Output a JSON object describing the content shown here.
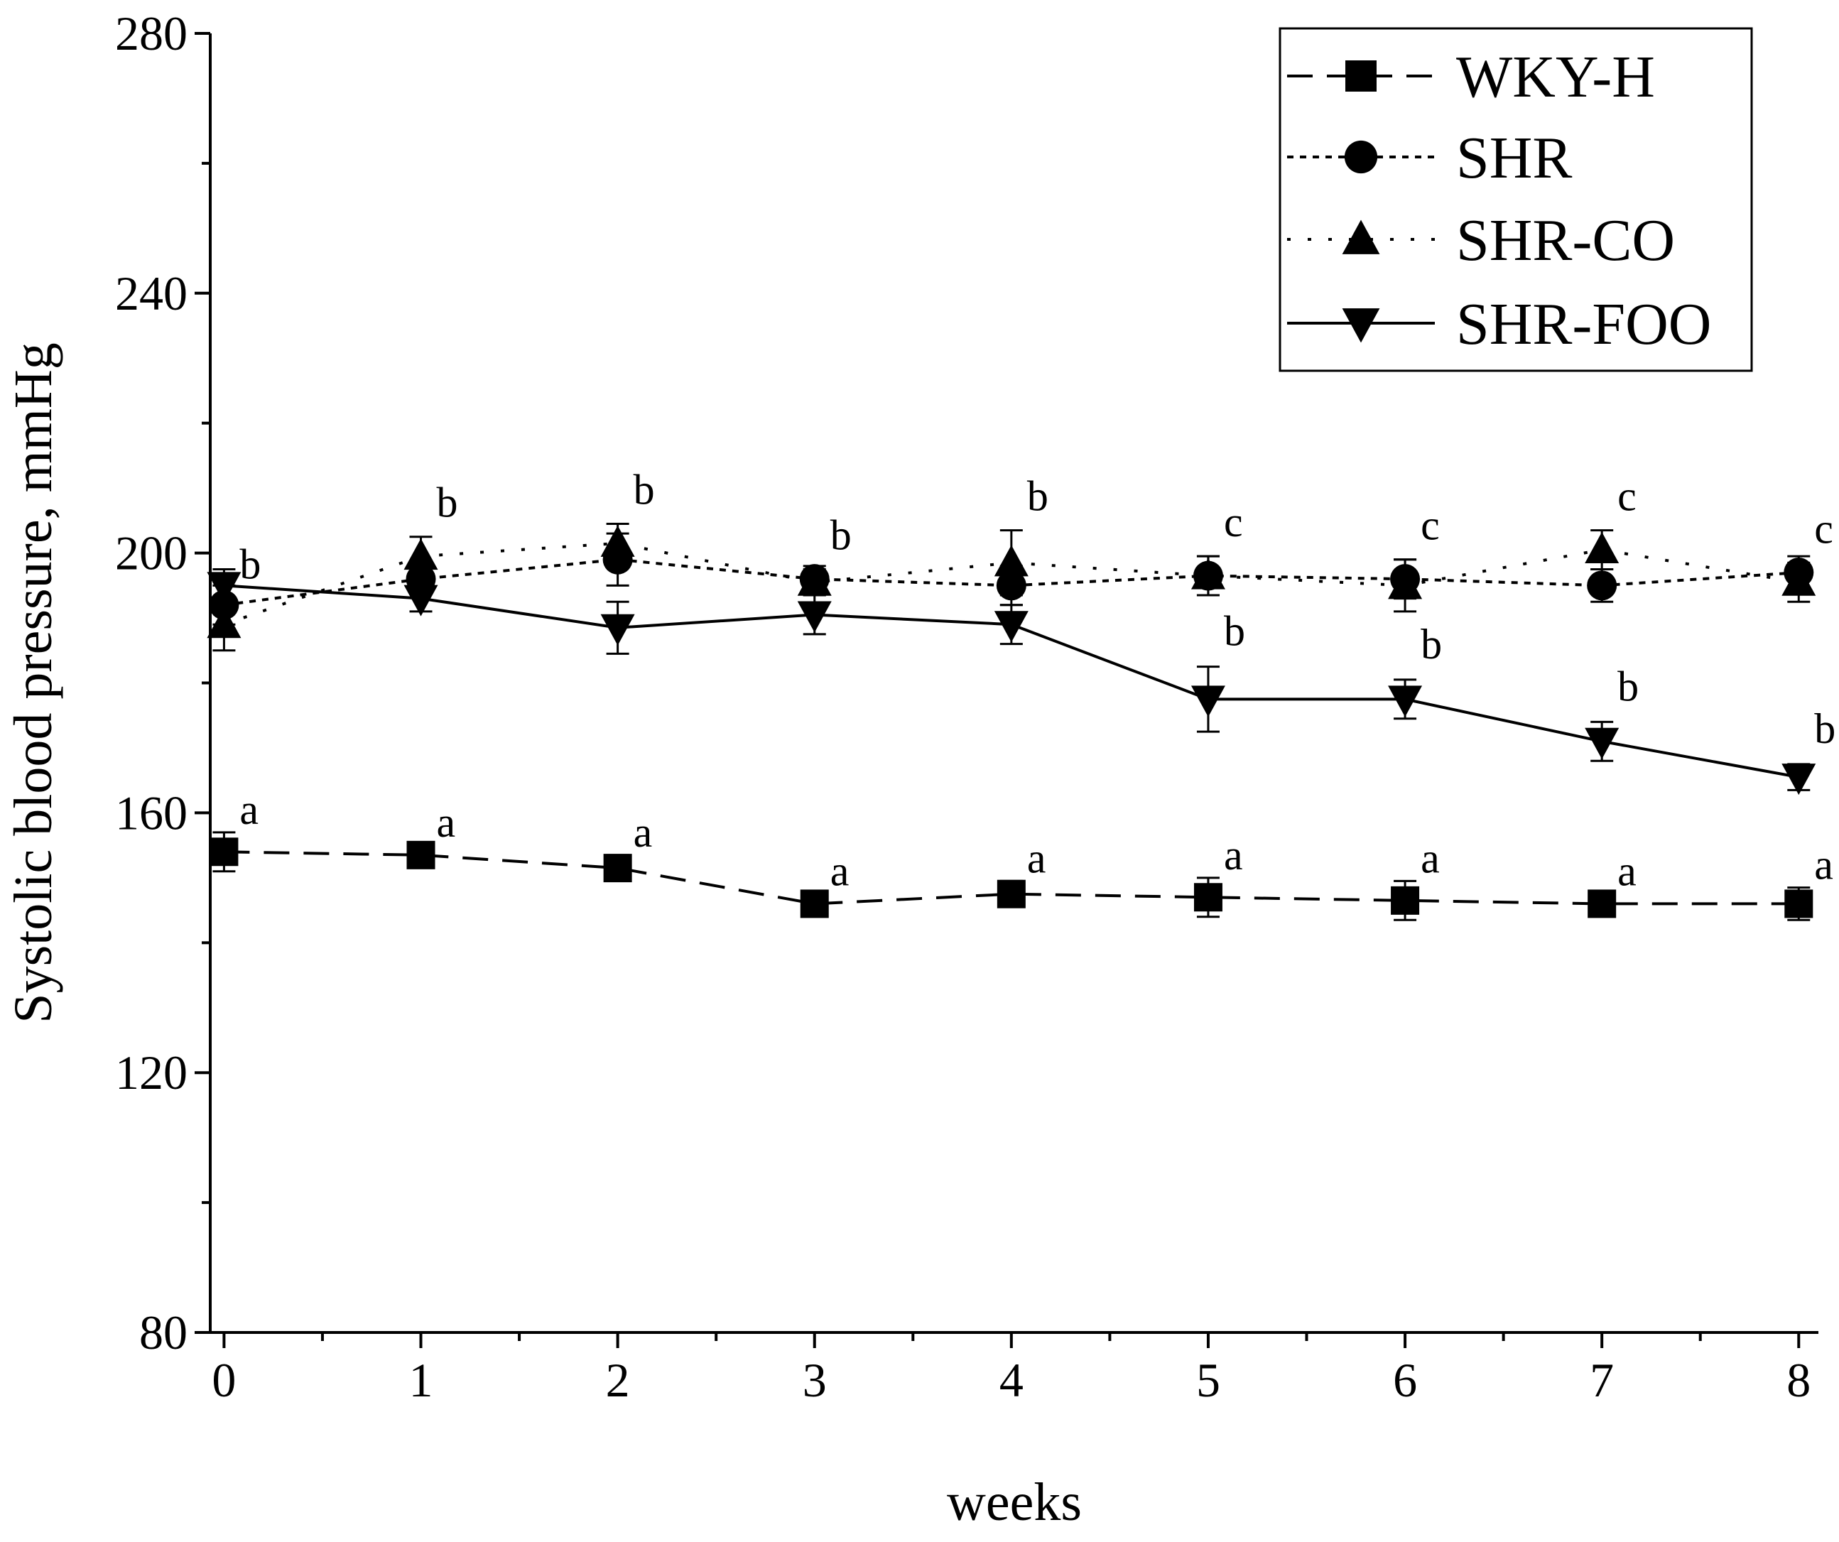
{
  "chart_data": {
    "type": "line",
    "title": "",
    "xlabel": "weeks",
    "ylabel": "Systolic blood pressure, mmHg",
    "xlim": [
      -0.07,
      8.1
    ],
    "ylim": [
      80,
      280
    ],
    "x": [
      0,
      1,
      2,
      3,
      4,
      5,
      6,
      7,
      8
    ],
    "x_tick_labels": [
      "0",
      "1",
      "2",
      "3",
      "4",
      "5",
      "6",
      "7",
      "8"
    ],
    "y_ticks": [
      80,
      120,
      160,
      200,
      240,
      280
    ],
    "y_tick_labels": [
      "80",
      "120",
      "160",
      "200",
      "240",
      "280"
    ],
    "grid": false,
    "legend_position": "top-right",
    "series": [
      {
        "name": "WKY-H",
        "line_style": "dashed",
        "marker": "square",
        "values": [
          154,
          153.5,
          151.5,
          146,
          147.5,
          147,
          146.5,
          146,
          146
        ],
        "errors": [
          3,
          1.5,
          2,
          1.5,
          2,
          3,
          3,
          1.5,
          2.5
        ],
        "labels": [
          "a",
          "a",
          "a",
          "a",
          "a",
          "a",
          "a",
          "a",
          "a"
        ]
      },
      {
        "name": "SHR",
        "line_style": "dotted",
        "marker": "circle",
        "values": [
          192,
          196,
          199,
          196,
          195,
          196.5,
          196,
          195,
          197
        ],
        "errors": [
          3,
          2,
          4,
          2,
          3,
          3,
          3,
          2.5,
          2.5
        ],
        "labels": []
      },
      {
        "name": "SHR-CO",
        "line_style": "sparse-dotted",
        "marker": "triangle-up",
        "values": [
          189,
          199.5,
          201.5,
          195.5,
          198.5,
          196.5,
          195,
          200.5,
          195.5
        ],
        "errors": [
          4,
          3,
          3,
          2,
          5,
          3,
          4,
          3,
          3
        ],
        "labels": [
          "b",
          "b",
          "b",
          "b",
          "b",
          "c",
          "c",
          "c",
          "c"
        ]
      },
      {
        "name": "SHR-FOO",
        "line_style": "solid",
        "marker": "triangle-down",
        "values": [
          195,
          193,
          188.5,
          190.5,
          189,
          177.5,
          177.5,
          171,
          165.5
        ],
        "errors": [
          2.5,
          2,
          4,
          3,
          3,
          5,
          3,
          3,
          2
        ],
        "labels": [
          "",
          "",
          "",
          "",
          "",
          "b",
          "b",
          "b",
          "b"
        ]
      }
    ]
  }
}
